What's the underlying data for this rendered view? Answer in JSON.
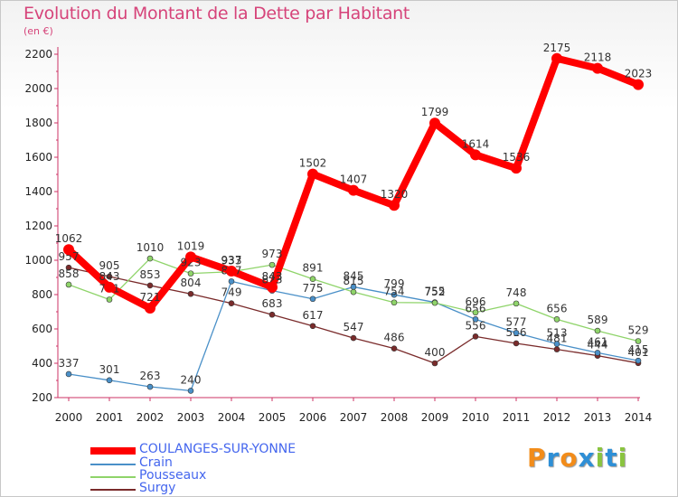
{
  "chart_data": {
    "type": "line",
    "title": "Evolution du Montant de la Dette par Habitant",
    "subtitle": "(en €)",
    "x": [
      "2000",
      "2001",
      "2002",
      "2003",
      "2004",
      "2005",
      "2006",
      "2007",
      "2008",
      "2009",
      "2010",
      "2011",
      "2012",
      "2013",
      "2014"
    ],
    "ylim": [
      200,
      2200
    ],
    "yticks": [
      200,
      400,
      600,
      800,
      1000,
      1200,
      1400,
      1600,
      1800,
      2000,
      2200
    ],
    "grid": false,
    "legend_position": "bottom-left",
    "series": [
      {
        "name": "COULANGES-SUR-YONNE",
        "color": "#ff0000",
        "width": 8,
        "values": [
          1062,
          843,
          721,
          1019,
          937,
          843,
          1502,
          1407,
          1320,
          1799,
          1614,
          1536,
          2175,
          2118,
          2023
        ]
      },
      {
        "name": "Crain",
        "color": "#4a90c8",
        "width": 1.3,
        "values": [
          337,
          301,
          263,
          240,
          877,
          823,
          775,
          845,
          799,
          755,
          656,
          577,
          513,
          461,
          415
        ]
      },
      {
        "name": "Pousseaux",
        "color": "#8fd46a",
        "width": 1.3,
        "values": [
          858,
          771,
          1010,
          923,
          933,
          973,
          891,
          815,
          754,
          752,
          696,
          748,
          656,
          589,
          529
        ]
      },
      {
        "name": "Surgy",
        "color": "#7a2b2b",
        "width": 1.3,
        "values": [
          957,
          905,
          853,
          804,
          749,
          683,
          617,
          547,
          486,
          400,
          556,
          516,
          481,
          444,
          401
        ]
      }
    ]
  },
  "logo": {
    "text": "Proxiti",
    "letters": [
      "P",
      "r",
      "o",
      "x",
      "i",
      "t",
      "i"
    ],
    "colors": [
      "#f28c1a",
      "#2e8fd6",
      "#f28c1a",
      "#2e8fd6",
      "#8ac43f",
      "#2e8fd6",
      "#8ac43f"
    ]
  }
}
